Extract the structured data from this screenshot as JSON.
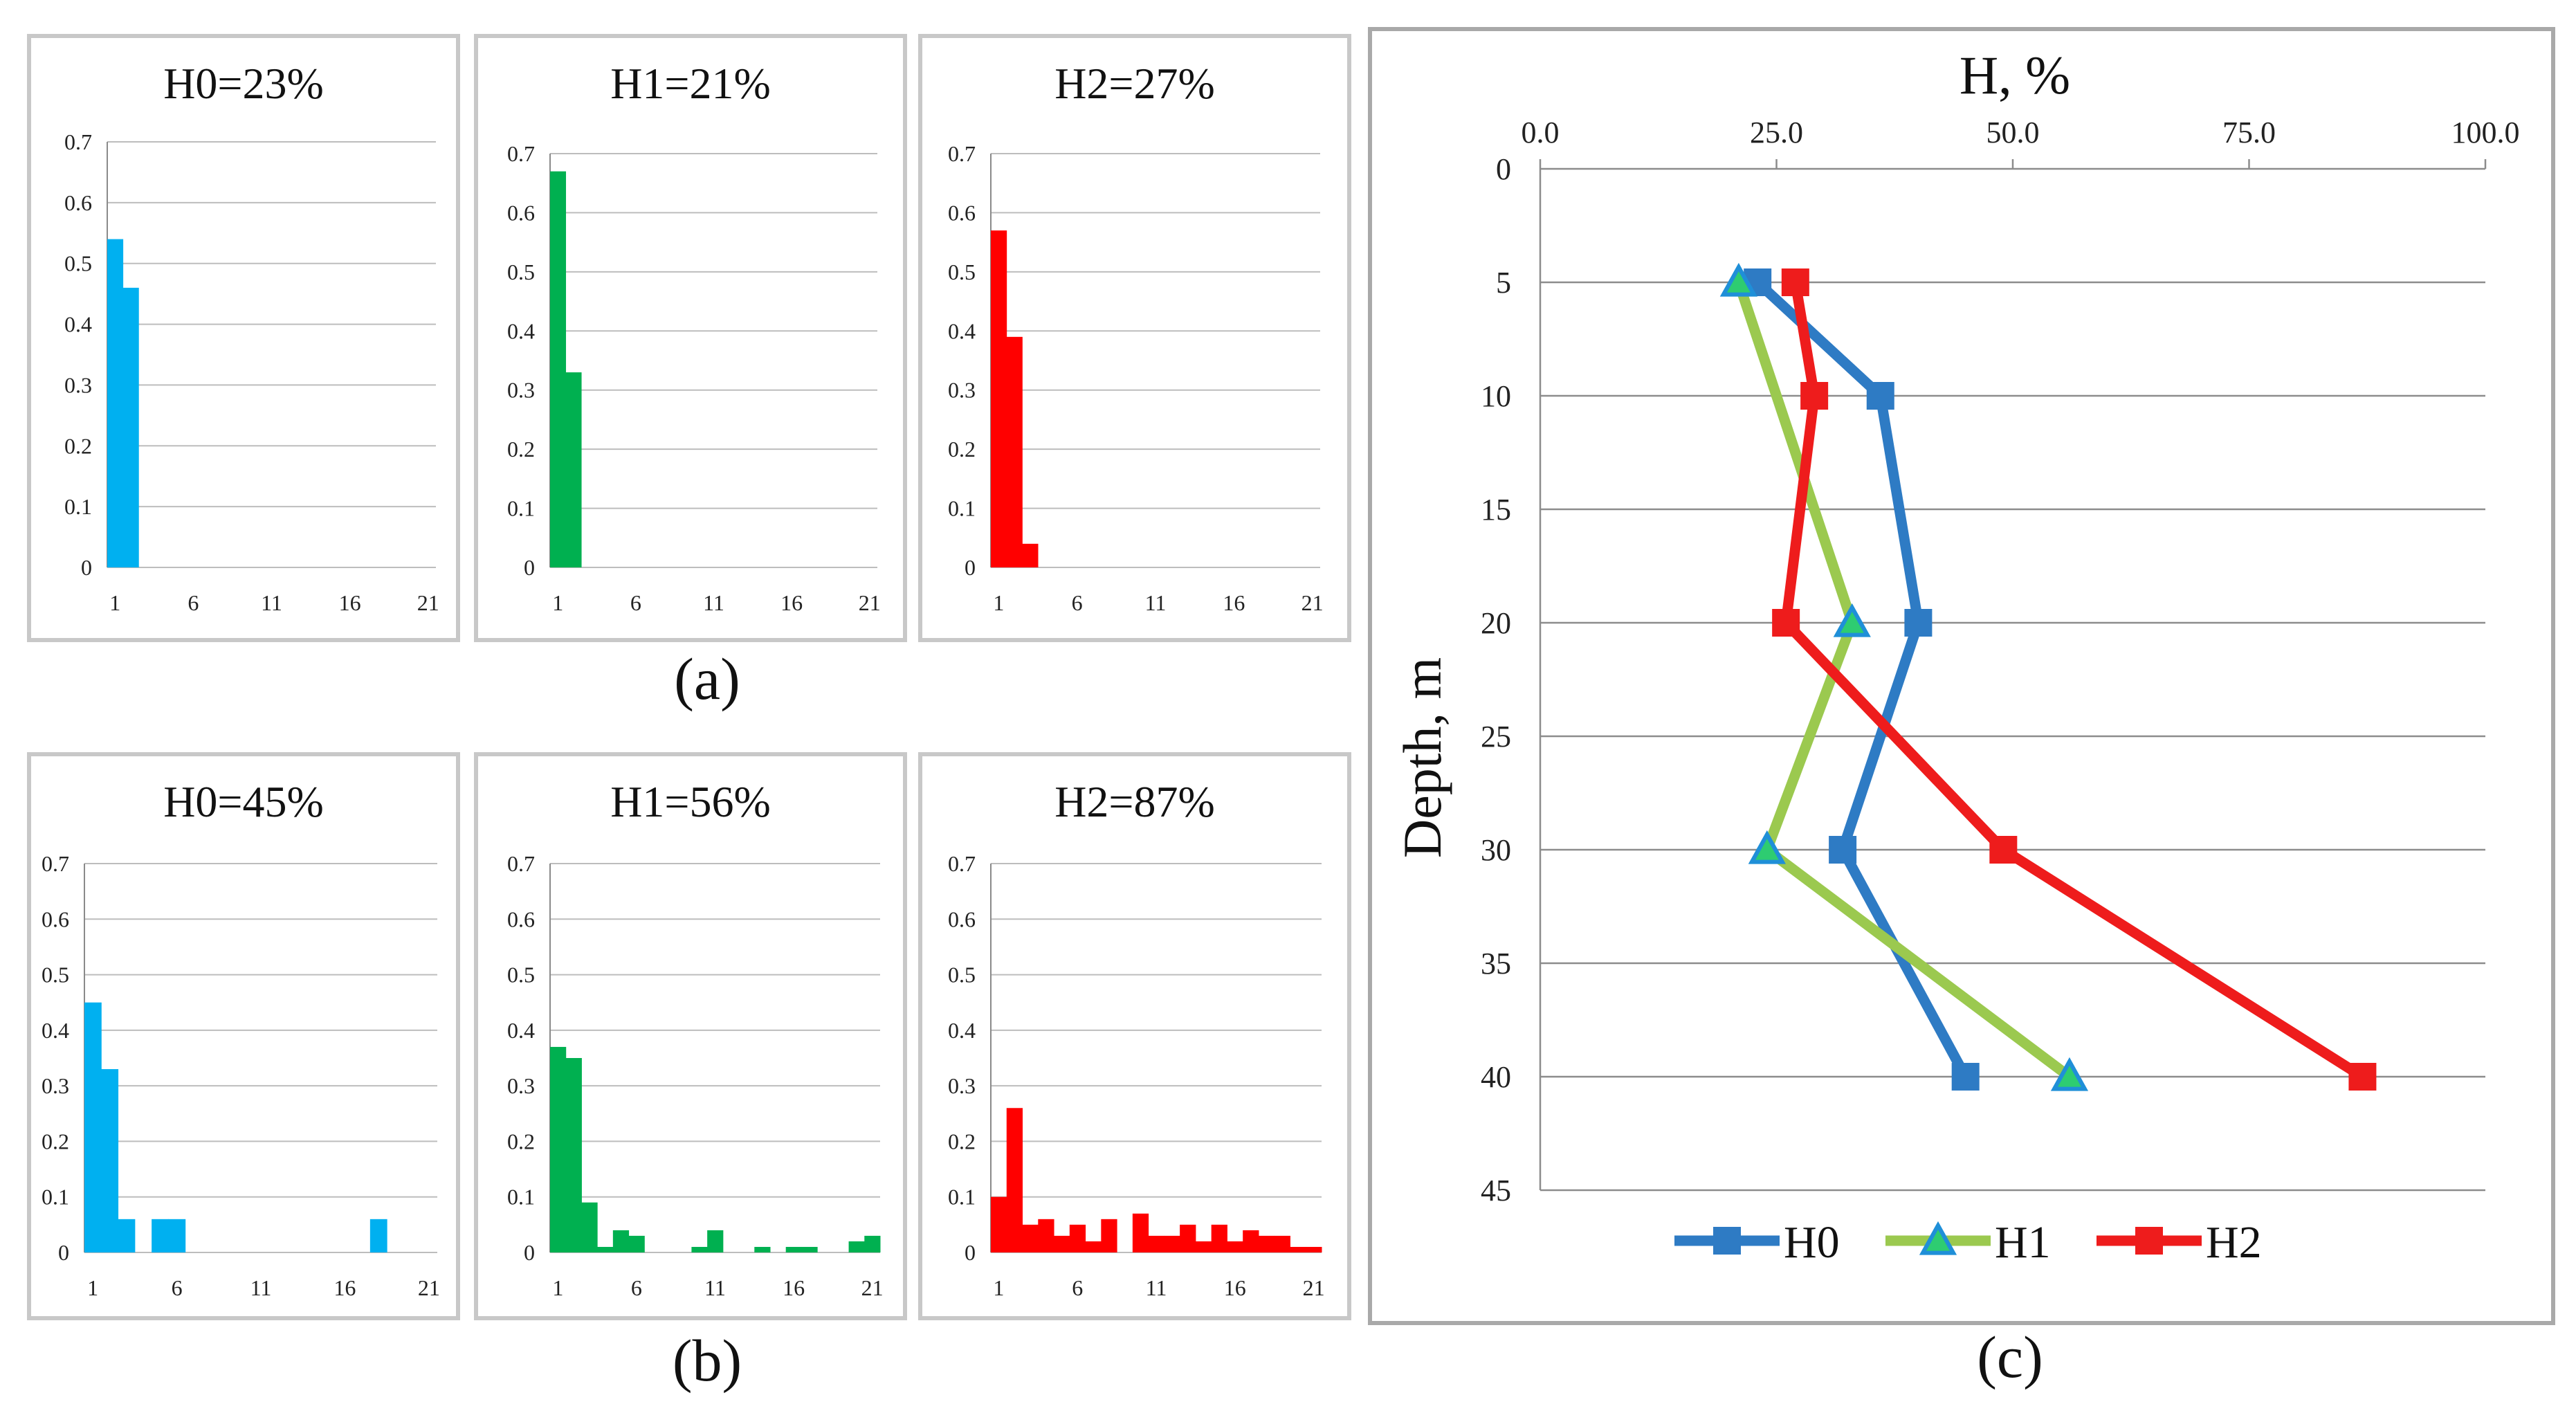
{
  "chart_data": [
    {
      "panel": "a",
      "type": "bar",
      "title": "H0=23%",
      "color": "#00b0f0",
      "categories": [
        "1",
        "2",
        "3",
        "4",
        "5",
        "6",
        "7",
        "8",
        "9",
        "10",
        "11",
        "12",
        "13",
        "14",
        "15",
        "16",
        "17",
        "18",
        "19",
        "20",
        "21"
      ],
      "values": [
        0.54,
        0.46,
        0,
        0,
        0,
        0,
        0,
        0,
        0,
        0,
        0,
        0,
        0,
        0,
        0,
        0,
        0,
        0,
        0,
        0,
        0
      ],
      "xticks": [
        "1",
        "6",
        "11",
        "16",
        "21"
      ],
      "yticks": [
        "0",
        "0.1",
        "0.2",
        "0.3",
        "0.4",
        "0.5",
        "0.6",
        "0.7"
      ],
      "ylim": [
        0,
        0.7
      ]
    },
    {
      "panel": "a",
      "type": "bar",
      "title": "H1=21%",
      "color": "#00b050",
      "categories": [
        "1",
        "2",
        "3",
        "4",
        "5",
        "6",
        "7",
        "8",
        "9",
        "10",
        "11",
        "12",
        "13",
        "14",
        "15",
        "16",
        "17",
        "18",
        "19",
        "20",
        "21"
      ],
      "values": [
        0.67,
        0.33,
        0,
        0,
        0,
        0,
        0,
        0,
        0,
        0,
        0,
        0,
        0,
        0,
        0,
        0,
        0,
        0,
        0,
        0,
        0
      ],
      "xticks": [
        "1",
        "6",
        "11",
        "16",
        "21"
      ],
      "yticks": [
        "0",
        "0.1",
        "0.2",
        "0.3",
        "0.4",
        "0.5",
        "0.6",
        "0.7"
      ],
      "ylim": [
        0,
        0.7
      ]
    },
    {
      "panel": "a",
      "type": "bar",
      "title": "H2=27%",
      "color": "#ff0000",
      "categories": [
        "1",
        "2",
        "3",
        "4",
        "5",
        "6",
        "7",
        "8",
        "9",
        "10",
        "11",
        "12",
        "13",
        "14",
        "15",
        "16",
        "17",
        "18",
        "19",
        "20",
        "21"
      ],
      "values": [
        0.57,
        0.39,
        0.04,
        0,
        0,
        0,
        0,
        0,
        0,
        0,
        0,
        0,
        0,
        0,
        0,
        0,
        0,
        0,
        0,
        0,
        0
      ],
      "xticks": [
        "1",
        "6",
        "11",
        "16",
        "21"
      ],
      "yticks": [
        "0",
        "0.1",
        "0.2",
        "0.3",
        "0.4",
        "0.5",
        "0.6",
        "0.7"
      ],
      "ylim": [
        0,
        0.7
      ]
    },
    {
      "panel": "b",
      "type": "bar",
      "title": "H0=45%",
      "color": "#00b0f0",
      "categories": [
        "1",
        "2",
        "3",
        "4",
        "5",
        "6",
        "7",
        "8",
        "9",
        "10",
        "11",
        "12",
        "13",
        "14",
        "15",
        "16",
        "17",
        "18",
        "19",
        "20",
        "21"
      ],
      "values": [
        0.45,
        0.33,
        0.06,
        0,
        0.06,
        0.06,
        0,
        0,
        0,
        0,
        0,
        0,
        0,
        0,
        0,
        0,
        0,
        0.06,
        0,
        0,
        0
      ],
      "xticks": [
        "1",
        "6",
        "11",
        "16",
        "21"
      ],
      "yticks": [
        "0",
        "0.1",
        "0.2",
        "0.3",
        "0.4",
        "0.5",
        "0.6",
        "0.7"
      ],
      "ylim": [
        0,
        0.7
      ]
    },
    {
      "panel": "b",
      "type": "bar",
      "title": "H1=56%",
      "color": "#00b050",
      "categories": [
        "1",
        "2",
        "3",
        "4",
        "5",
        "6",
        "7",
        "8",
        "9",
        "10",
        "11",
        "12",
        "13",
        "14",
        "15",
        "16",
        "17",
        "18",
        "19",
        "20",
        "21"
      ],
      "values": [
        0.37,
        0.35,
        0.09,
        0.01,
        0.04,
        0.03,
        0,
        0,
        0,
        0.01,
        0.04,
        0,
        0,
        0.01,
        0,
        0.01,
        0.01,
        0,
        0,
        0.02,
        0.03
      ],
      "xticks": [
        "1",
        "6",
        "11",
        "16",
        "21"
      ],
      "yticks": [
        "0",
        "0.1",
        "0.2",
        "0.3",
        "0.4",
        "0.5",
        "0.6",
        "0.7"
      ],
      "ylim": [
        0,
        0.7
      ]
    },
    {
      "panel": "b",
      "type": "bar",
      "title": "H2=87%",
      "color": "#ff0000",
      "categories": [
        "1",
        "2",
        "3",
        "4",
        "5",
        "6",
        "7",
        "8",
        "9",
        "10",
        "11",
        "12",
        "13",
        "14",
        "15",
        "16",
        "17",
        "18",
        "19",
        "20",
        "21"
      ],
      "values": [
        0.1,
        0.26,
        0.05,
        0.06,
        0.03,
        0.05,
        0.02,
        0.06,
        0,
        0.07,
        0.03,
        0.03,
        0.05,
        0.02,
        0.05,
        0.02,
        0.04,
        0.03,
        0.03,
        0.01,
        0.01
      ],
      "xticks": [
        "1",
        "6",
        "11",
        "16",
        "21"
      ],
      "yticks": [
        "0",
        "0.1",
        "0.2",
        "0.3",
        "0.4",
        "0.5",
        "0.6",
        "0.7"
      ],
      "ylim": [
        0,
        0.7
      ]
    },
    {
      "panel": "c",
      "type": "line",
      "title": "H, %",
      "xlabel": "H, %",
      "ylabel": "Depth, m",
      "xlim": [
        0,
        100
      ],
      "ylim": [
        0,
        45
      ],
      "xticks": [
        "0.0",
        "25.0",
        "50.0",
        "75.0",
        "100.0"
      ],
      "yticks": [
        "0",
        "5",
        "10",
        "15",
        "20",
        "25",
        "30",
        "35",
        "40",
        "45"
      ],
      "series": [
        {
          "name": "H0",
          "color": "#2e7bc4",
          "marker": "square",
          "points": [
            {
              "x": 23,
              "y": 5
            },
            {
              "x": 36,
              "y": 10
            },
            {
              "x": 40,
              "y": 20
            },
            {
              "x": 32,
              "y": 30
            },
            {
              "x": 45,
              "y": 40
            }
          ]
        },
        {
          "name": "H1",
          "color": "#9bc94f",
          "marker": "triangle",
          "points": [
            {
              "x": 21,
              "y": 5
            },
            {
              "x": 33,
              "y": 20
            },
            {
              "x": 24,
              "y": 30
            },
            {
              "x": 56,
              "y": 40
            }
          ]
        },
        {
          "name": "H2",
          "color": "#ee1c1c",
          "marker": "square",
          "points": [
            {
              "x": 27,
              "y": 5
            },
            {
              "x": 29,
              "y": 10
            },
            {
              "x": 26,
              "y": 20
            },
            {
              "x": 49,
              "y": 30
            },
            {
              "x": 87,
              "y": 40
            }
          ]
        }
      ],
      "legend": [
        "H0",
        "H1",
        "H2"
      ]
    }
  ],
  "labels": {
    "a": "(a)",
    "b": "(b)",
    "c": "(c)"
  }
}
